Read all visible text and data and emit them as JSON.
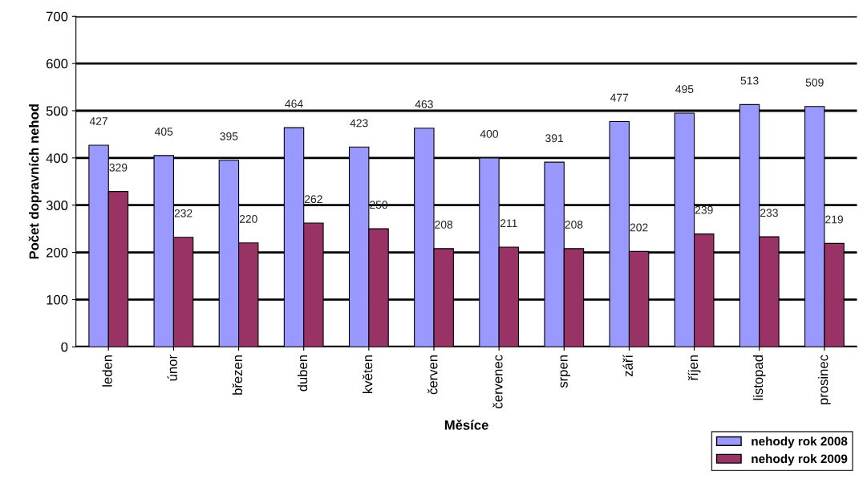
{
  "chart_data": {
    "type": "bar",
    "xlabel": "Měsíce",
    "ylabel": "Počet dopravních nehod",
    "categories": [
      "leden",
      "únor",
      "březen",
      "duben",
      "květen",
      "červen",
      "červenec",
      "srpen",
      "září",
      "říjen",
      "listopad",
      "prosinec"
    ],
    "series": [
      {
        "name": "nehody rok 2008",
        "color": "#9999ff",
        "values": [
          427,
          405,
          395,
          464,
          423,
          463,
          400,
          391,
          477,
          495,
          513,
          509
        ]
      },
      {
        "name": "nehody rok 2009",
        "color": "#993366",
        "values": [
          329,
          232,
          220,
          262,
          250,
          208,
          211,
          208,
          202,
          239,
          233,
          219
        ]
      }
    ],
    "ylim": [
      0,
      700
    ],
    "yticks": [
      0,
      100,
      200,
      300,
      400,
      500,
      600,
      700
    ],
    "grid": "y",
    "legend": "bottom right",
    "data_labels": true
  }
}
